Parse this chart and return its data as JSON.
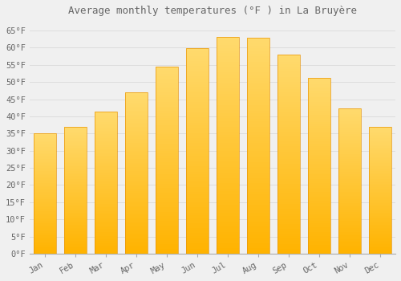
{
  "title": "Average monthly temperatures (°F ) in La Bruyère",
  "months": [
    "Jan",
    "Feb",
    "Mar",
    "Apr",
    "May",
    "Jun",
    "Jul",
    "Aug",
    "Sep",
    "Oct",
    "Nov",
    "Dec"
  ],
  "values": [
    35.1,
    37.0,
    41.5,
    47.0,
    54.5,
    59.9,
    63.1,
    63.0,
    58.1,
    51.3,
    42.3,
    37.0
  ],
  "bar_color_bottom": "#FFB300",
  "bar_color_top": "#FFDA6E",
  "bar_edge_color": "#E8960A",
  "background_color": "#f0f0f0",
  "grid_color": "#dddddd",
  "text_color": "#666666",
  "ylim": [
    0,
    68
  ],
  "yticks": [
    0,
    5,
    10,
    15,
    20,
    25,
    30,
    35,
    40,
    45,
    50,
    55,
    60,
    65
  ],
  "title_fontsize": 9,
  "tick_fontsize": 7.5,
  "bar_width": 0.75,
  "n_grad": 80
}
